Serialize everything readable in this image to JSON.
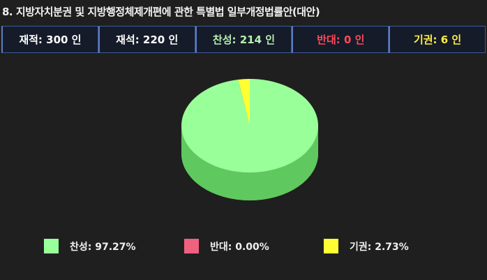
{
  "title": "8. 지방자치분권 및 지방행정체제개편에 관한 특별법 일부개정법률안(대안)",
  "stats": [
    {
      "label": "재적: 300 인",
      "color": "#ffffff"
    },
    {
      "label": "재석: 220 인",
      "color": "#ffffff"
    },
    {
      "label": "찬성: 214 인",
      "color": "#b6f0b0"
    },
    {
      "label": "반대:  0 인",
      "color": "#ff4a5a"
    },
    {
      "label": "기권:  6 인",
      "color": "#ffee44"
    }
  ],
  "chart_data": {
    "type": "pie",
    "title": "",
    "categories": [
      "찬성",
      "반대",
      "기권"
    ],
    "values": [
      97.27,
      0.0,
      2.73
    ],
    "colors": [
      "#99ff99",
      "#f06080",
      "#ffff33"
    ],
    "legend": [
      "찬성: 97.27%",
      "반대: 0.00%",
      "기권: 2.73%"
    ],
    "legend_position": "bottom",
    "style": "3d"
  }
}
